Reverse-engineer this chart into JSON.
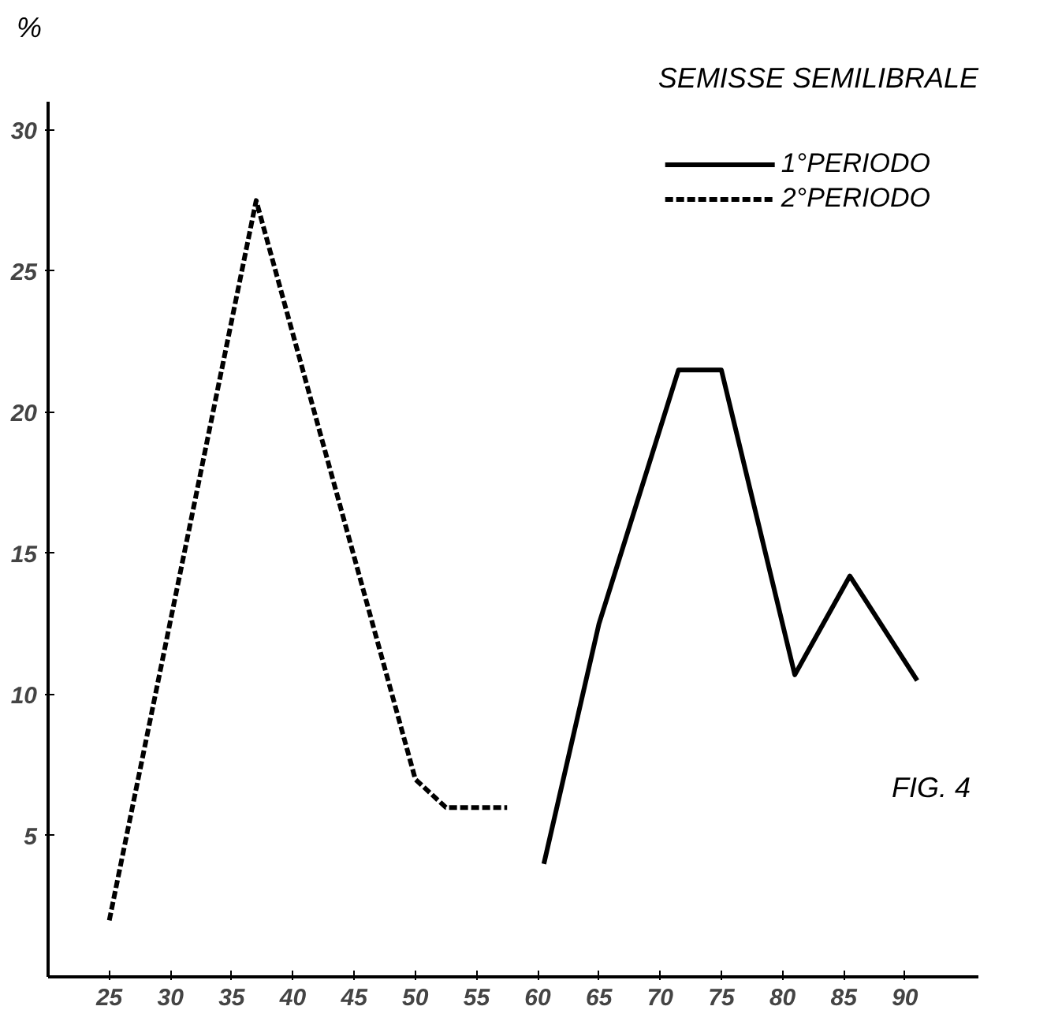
{
  "chart_data": {
    "type": "line",
    "title": "SEMISSE SEMILIBRALE",
    "ylabel": "%",
    "annotations": [
      "FIG. 4"
    ],
    "xlim": [
      20,
      96
    ],
    "xticks": [
      25,
      30,
      35,
      40,
      45,
      50,
      55,
      60,
      65,
      70,
      75,
      80,
      85,
      90
    ],
    "ylim": [
      0,
      31
    ],
    "yticks": [
      5,
      10,
      15,
      20,
      25,
      30
    ],
    "grid": false,
    "legend": "top right",
    "series": [
      {
        "name": "1°PERIODO",
        "color": "#000000",
        "line_style": "solid",
        "x": [
          60.5,
          65,
          71.5,
          75,
          81,
          85.5,
          91
        ],
        "values": [
          4,
          12.5,
          21.5,
          21.5,
          10.7,
          14.2,
          10.5
        ]
      },
      {
        "name": "2°PERIODO",
        "color": "#000000",
        "line_style": "dashed",
        "x": [
          25,
          37,
          50,
          52.5,
          57.5
        ],
        "values": [
          2,
          27.5,
          7,
          6,
          6
        ]
      }
    ]
  }
}
